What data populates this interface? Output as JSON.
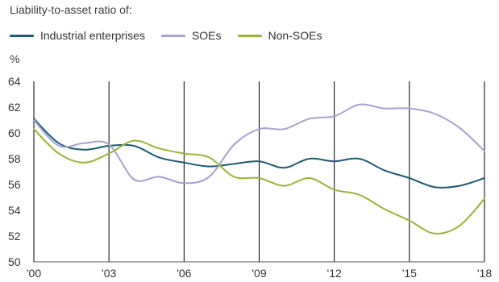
{
  "header": {
    "title": "Liability-to-asset ratio of:",
    "unit": "%"
  },
  "legend": [
    {
      "label": "Industrial enterprises",
      "color": "#1f5a73"
    },
    {
      "label": "SOEs",
      "color": "#a7a2cf"
    },
    {
      "label": "Non-SOEs",
      "color": "#99b53a"
    }
  ],
  "chart_data": {
    "type": "line",
    "title": "Liability-to-asset ratio of:",
    "ylabel": "%",
    "ylim": [
      50,
      64
    ],
    "y_ticks": [
      "50",
      "52",
      "54",
      "56",
      "58",
      "60",
      "62",
      "64"
    ],
    "x_ticks": [
      {
        "x": 2000,
        "label": "'00"
      },
      {
        "x": 2003,
        "label": "'03"
      },
      {
        "x": 2006,
        "label": "'06"
      },
      {
        "x": 2009,
        "label": "'09"
      },
      {
        "x": 2012,
        "label": "'12"
      },
      {
        "x": 2015,
        "label": "'15"
      },
      {
        "x": 2018,
        "label": "'18"
      }
    ],
    "xlim": [
      2000,
      2018
    ],
    "vertical_gridlines": true,
    "series": [
      {
        "name": "Industrial enterprises",
        "color": "#1f5a73",
        "x": [
          2000,
          2001,
          2002,
          2003,
          2004,
          2005,
          2006,
          2007,
          2008,
          2009,
          2010,
          2011,
          2012,
          2013,
          2014,
          2015,
          2016,
          2017,
          2018
        ],
        "y": [
          61.1,
          59.2,
          58.7,
          59.0,
          59.0,
          58.1,
          57.7,
          57.4,
          57.6,
          57.8,
          57.3,
          58.0,
          57.8,
          58.0,
          57.1,
          56.5,
          55.8,
          55.9,
          56.5
        ]
      },
      {
        "name": "SOEs",
        "color": "#a7a2cf",
        "x": [
          2000,
          2001,
          2002,
          2003,
          2004,
          2005,
          2006,
          2007,
          2008,
          2009,
          2010,
          2011,
          2012,
          2013,
          2014,
          2015,
          2016,
          2017,
          2018
        ],
        "y": [
          61.0,
          59.0,
          59.2,
          59.1,
          56.4,
          56.6,
          56.1,
          56.6,
          59.1,
          60.3,
          60.3,
          61.1,
          61.3,
          62.2,
          61.9,
          61.9,
          61.5,
          60.4,
          58.6
        ]
      },
      {
        "name": "Non-SOEs",
        "color": "#99b53a",
        "x": [
          2000,
          2001,
          2002,
          2003,
          2004,
          2005,
          2006,
          2007,
          2008,
          2009,
          2010,
          2011,
          2012,
          2013,
          2014,
          2015,
          2016,
          2017,
          2018
        ],
        "y": [
          60.3,
          58.4,
          57.7,
          58.4,
          59.4,
          58.8,
          58.4,
          58.1,
          56.6,
          56.5,
          55.9,
          56.5,
          55.6,
          55.2,
          54.1,
          53.2,
          52.2,
          52.8,
          54.9
        ]
      }
    ]
  }
}
